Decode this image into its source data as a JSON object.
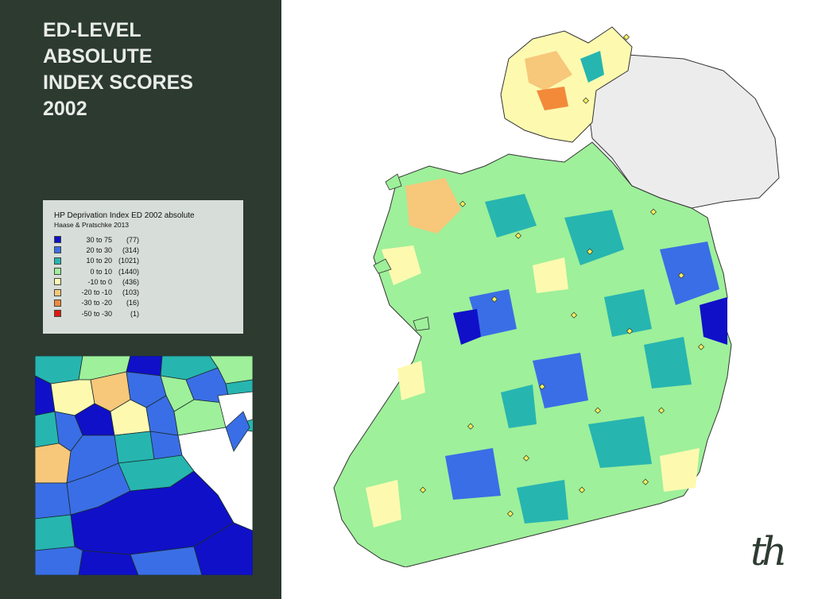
{
  "title": {
    "lines": [
      "ED-LEVEL",
      "ABSOLUTE",
      "INDEX SCORES",
      "2002"
    ]
  },
  "legend": {
    "title": "HP Deprivation Index ED 2002 absolute",
    "source": "Haase & Pratschke 2013",
    "classes": [
      {
        "range": "30 to  75",
        "count": "(77)",
        "color": "#1010c8"
      },
      {
        "range": "20 to  30",
        "count": "(314)",
        "color": "#3a6ee6"
      },
      {
        "range": "10 to  20",
        "count": "(1021)",
        "color": "#27b5b0"
      },
      {
        "range": "0 to  10",
        "count": "(1440)",
        "color": "#9ef09a"
      },
      {
        "range": "-10 to    0",
        "count": "(436)",
        "color": "#fdfab0"
      },
      {
        "range": "-20 to -10",
        "count": "(103)",
        "color": "#f7c77a"
      },
      {
        "range": "-30 to -20",
        "count": "(16)",
        "color": "#f28a3a"
      },
      {
        "range": "-50 to -30",
        "count": "(1)",
        "color": "#e01a10"
      }
    ]
  },
  "map": {
    "land_color": "#9ef09a",
    "northern_ireland_color": "#ececec",
    "town_marker_color": "#f5f05a",
    "sea_color": "#ffffff"
  },
  "logo": {
    "text": "th"
  }
}
